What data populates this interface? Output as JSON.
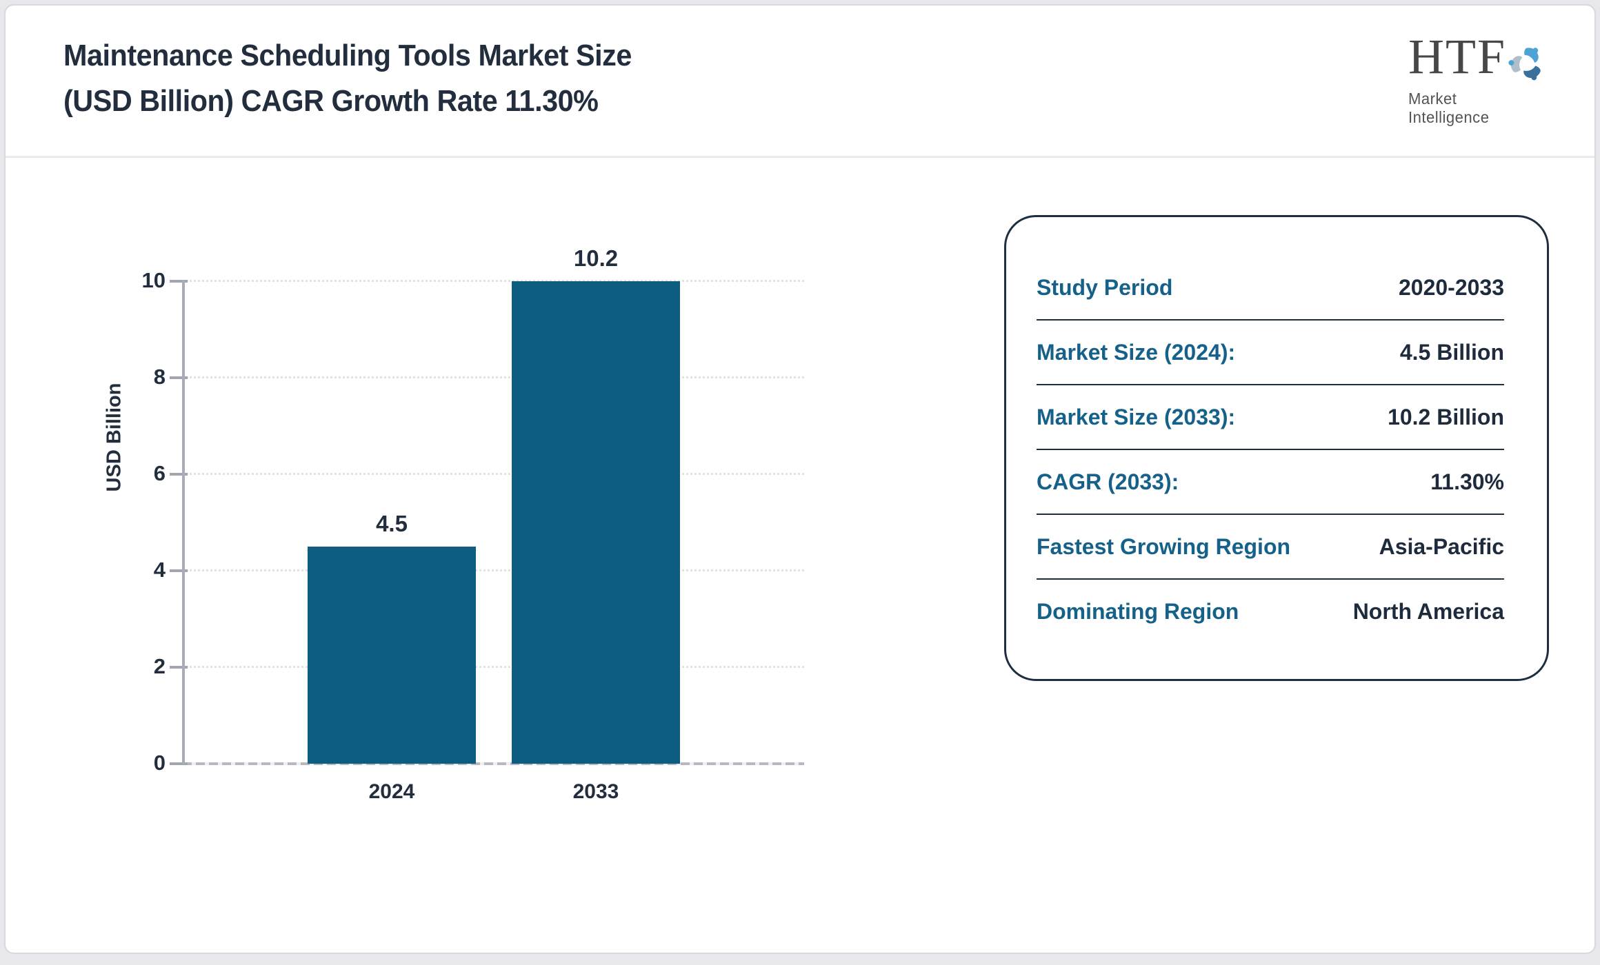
{
  "header": {
    "title": "Maintenance Scheduling Tools Market Size\n(USD Billion) CAGR Growth Rate 11.30%",
    "logo_text": "HTF",
    "logo_subtext": "Market Intelligence"
  },
  "chart_data": {
    "type": "bar",
    "title": "Maintenance Scheduling Tools Market Size (USD Billion) CAGR Growth Rate 11.30%",
    "categories": [
      "2024",
      "2033"
    ],
    "values": [
      4.5,
      10.2
    ],
    "value_labels": [
      "4.5",
      "10.2"
    ],
    "xlabel": "",
    "ylabel": "USD Billion",
    "ylim": [
      0,
      10
    ],
    "yticks": [
      0,
      2,
      4,
      6,
      8,
      10
    ],
    "grid": "horizontal-dotted",
    "legend": "none",
    "bar_color": "#0e5c80"
  },
  "summary_panel": {
    "rows": [
      {
        "label": "Study Period",
        "value": "2020-2033"
      },
      {
        "label": "Market Size (2024):",
        "value": "4.5 Billion"
      },
      {
        "label": "Market Size (2033):",
        "value": "10.2 Billion"
      },
      {
        "label": "CAGR (2033):",
        "value": "11.30%"
      },
      {
        "label": "Fastest Growing Region",
        "value": "Asia-Pacific"
      },
      {
        "label": "Dominating Region",
        "value": "North America"
      }
    ]
  },
  "colors": {
    "bar": "#0e5c80",
    "label_teal": "#15618a",
    "text_dark": "#222e3e",
    "axis_gray": "#a7adb6",
    "gridline": "#e2e2e5",
    "panel_border": "#1d2e40",
    "logo_blue_light": "#4da3d4",
    "logo_blue_dark": "#39719c",
    "logo_gray": "#aebfca"
  }
}
